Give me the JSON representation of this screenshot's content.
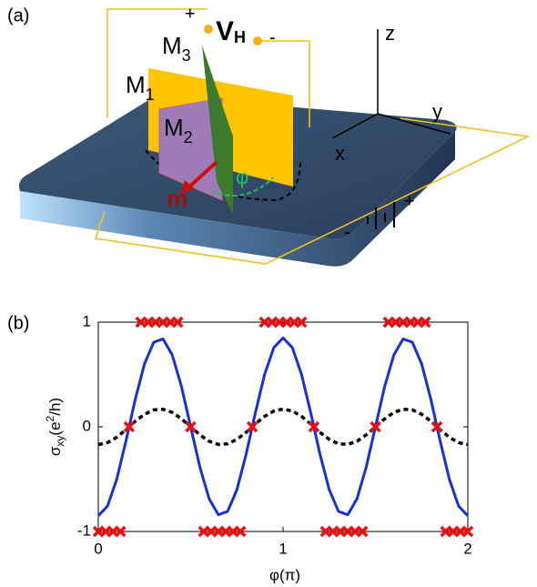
{
  "panel_a": {
    "label": "(a)",
    "texts": {
      "plus_top": "+",
      "v": "V",
      "v_sub": "H",
      "minus_top": "-",
      "m3": "M",
      "m3_sub": "3",
      "m1": "M",
      "m1_sub": "1",
      "m2": "M",
      "m2_sub": "2",
      "m": "m",
      "phi": "φ",
      "z": "z",
      "y": "y",
      "x": "x",
      "minus_bottom": "-",
      "plus_bottom": "+"
    }
  },
  "chart_data": {
    "type": "line",
    "panel_label": "(b)",
    "xlabel": "φ(π)",
    "ylabel": {
      "main": "σ",
      "sub": "xy",
      "open": "(e",
      "sup": "2",
      "close": "/h)"
    },
    "xlim": [
      0,
      2
    ],
    "ylim": [
      -1,
      1
    ],
    "xticks": [
      0,
      1,
      2
    ],
    "yticks": [
      -1,
      0,
      1
    ],
    "x": [
      0,
      0.05,
      0.1,
      0.15,
      0.2,
      0.25,
      0.3,
      0.35,
      0.4,
      0.45,
      0.5,
      0.55,
      0.6,
      0.65,
      0.7,
      0.75,
      0.8,
      0.85,
      0.9,
      0.95,
      1,
      1.05,
      1.1,
      1.15,
      1.2,
      1.25,
      1.3,
      1.35,
      1.4,
      1.45,
      1.5,
      1.55,
      1.6,
      1.65,
      1.7,
      1.75,
      1.8,
      1.85,
      1.9,
      1.95,
      2
    ],
    "series": [
      {
        "style": "solid",
        "color": "#1a2fd6",
        "values": [
          -0.85,
          -0.757,
          -0.5,
          -0.133,
          0.263,
          0.601,
          0.808,
          0.84,
          0.688,
          0.386,
          0,
          -0.386,
          -0.688,
          -0.84,
          -0.808,
          -0.601,
          -0.263,
          0.133,
          0.5,
          0.757,
          0.85,
          0.757,
          0.5,
          0.133,
          -0.263,
          -0.601,
          -0.808,
          -0.84,
          -0.688,
          -0.386,
          0,
          0.386,
          0.688,
          0.84,
          0.808,
          0.601,
          0.263,
          -0.133,
          -0.5,
          -0.757,
          -0.85
        ]
      },
      {
        "style": "dashed",
        "color": "#000000",
        "values": [
          -0.17,
          -0.151,
          -0.1,
          -0.027,
          0.053,
          0.12,
          0.162,
          0.168,
          0.138,
          0.077,
          0,
          -0.077,
          -0.138,
          -0.168,
          -0.162,
          -0.12,
          -0.053,
          0.027,
          0.1,
          0.151,
          0.17,
          0.151,
          0.1,
          0.027,
          -0.053,
          -0.12,
          -0.162,
          -0.168,
          -0.138,
          -0.077,
          0,
          0.077,
          0.138,
          0.168,
          0.162,
          0.12,
          0.053,
          -0.027,
          -0.1,
          -0.151,
          -0.17
        ]
      },
      {
        "style": "cross",
        "color": "#e81010",
        "x": [
          0.23,
          0.27,
          0.31,
          0.35,
          0.39,
          0.43,
          0.9,
          0.94,
          0.98,
          1.02,
          1.06,
          1.1,
          1.57,
          1.61,
          1.65,
          1.69,
          1.73,
          1.77,
          0,
          0.04,
          0.08,
          0.12,
          0.57,
          0.61,
          0.65,
          0.69,
          0.73,
          0.77,
          1.23,
          1.27,
          1.31,
          1.35,
          1.39,
          1.43,
          1.88,
          1.92,
          1.96,
          2,
          0.167,
          0.5,
          0.833,
          1.167,
          1.5,
          1.833
        ],
        "values": [
          1,
          1,
          1,
          1,
          1,
          1,
          1,
          1,
          1,
          1,
          1,
          1,
          1,
          1,
          1,
          1,
          1,
          1,
          -1,
          -1,
          -1,
          -1,
          -1,
          -1,
          -1,
          -1,
          -1,
          -1,
          -1,
          -1,
          -1,
          -1,
          -1,
          -1,
          -1,
          -1,
          -1,
          -1,
          0,
          0,
          0,
          0,
          0,
          0
        ]
      }
    ]
  }
}
